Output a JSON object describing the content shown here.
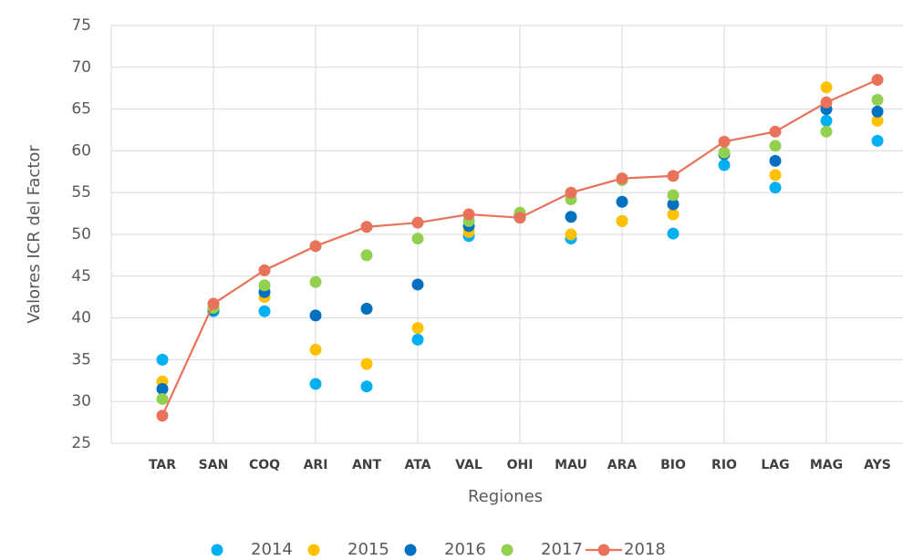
{
  "chart_data": {
    "type": "line",
    "x_axis_label": "Regiones",
    "y_axis_label": "Valores ICR del Factor",
    "categories": [
      "TAR",
      "SAN",
      "COQ",
      "ARI",
      "ANT",
      "ATA",
      "VAL",
      "OHI",
      "MAU",
      "ARA",
      "BIO",
      "RIO",
      "LAG",
      "MAG",
      "AYS"
    ],
    "series": [
      {
        "name": "2014",
        "color": "#00b0f0",
        "style": "markers",
        "values": [
          35.0,
          40.8,
          40.8,
          32.1,
          31.8,
          37.4,
          49.8,
          52.0,
          49.5,
          51.6,
          50.1,
          58.3,
          55.6,
          63.6,
          61.2
        ]
      },
      {
        "name": "2015",
        "color": "#ffc000",
        "style": "markers",
        "values": [
          32.4,
          41.2,
          42.5,
          36.2,
          34.5,
          38.8,
          50.3,
          52.1,
          50.0,
          51.6,
          52.4,
          59.6,
          57.1,
          67.6,
          63.6
        ]
      },
      {
        "name": "2016",
        "color": "#0070c0",
        "style": "markers",
        "values": [
          31.5,
          41.0,
          43.1,
          40.3,
          41.1,
          44.0,
          51.0,
          52.3,
          52.1,
          53.9,
          53.6,
          59.6,
          58.8,
          65.0,
          64.7
        ]
      },
      {
        "name": "2017",
        "color": "#92d050",
        "style": "markers",
        "values": [
          30.3,
          41.2,
          43.9,
          44.3,
          47.5,
          49.5,
          51.6,
          52.6,
          54.2,
          56.5,
          54.7,
          59.8,
          60.6,
          62.3,
          66.1
        ]
      },
      {
        "name": "2018",
        "color": "#e8735a",
        "style": "line+markers",
        "values": [
          28.3,
          41.7,
          45.7,
          48.6,
          50.9,
          51.4,
          52.4,
          52.0,
          55.0,
          56.7,
          57.0,
          61.1,
          62.3,
          65.8,
          68.5
        ]
      }
    ],
    "ylim": [
      25,
      75
    ],
    "yticks": [
      25,
      30,
      35,
      40,
      45,
      50,
      55,
      60,
      65,
      70,
      75
    ],
    "grid": true,
    "legend": "bottom"
  }
}
